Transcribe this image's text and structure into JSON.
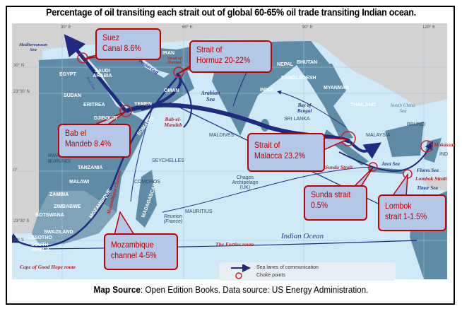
{
  "title": "Percentage of oil transiting each strait out of global 60-65% oil trade transiting Indian ocean.",
  "colors": {
    "sea": "#cfe9f6",
    "land_region": "#5e8ca6",
    "land_other": "#d2d2d2",
    "route": "#1f2a80",
    "choke": "#c8202a",
    "callout_bg": "#b4c7e7",
    "callout_border": "#c00000"
  },
  "callouts": {
    "suez": [
      "Suez",
      "Canal  8.6%"
    ],
    "hormuz": [
      "Strait of",
      "Hormuz 20-22%"
    ],
    "bab": [
      "Bab el",
      "Mandeb  8.4%"
    ],
    "malacca": [
      "Strait of",
      "Malacca 23.2%"
    ],
    "sunda": [
      "Sunda strait",
      "0.5%"
    ],
    "lombok": [
      "Lombok",
      "strait 1-1.5%"
    ],
    "mozambique": [
      "Mozambique",
      "channel 4-5%"
    ]
  },
  "grid_labels": {
    "lon30": "30° E",
    "lon60": "60° E",
    "lon90": "90° E",
    "lon120": "120° E",
    "lat30": "30° N",
    "lat23": "23°30' N",
    "lat0": "0°",
    "lat23s": "23°30' S",
    "lat30s": "30° S"
  },
  "countries": [
    "EGYPT",
    "SAUDI ARABIA",
    "IRAN",
    "NEPAL",
    "BHUTAN",
    "BANGLADESH",
    "INDIA",
    "MYANMAR",
    "THAILAND",
    "SUDAN",
    "ERITREA",
    "YEMEN",
    "OMAN",
    "DJIBOUTI",
    "SOMALIA",
    "SRI LANKA",
    "MALDIVES",
    "MALAYSIA",
    "BRUNEI",
    "RWANDA",
    "BURUNDI",
    "TANZANIA",
    "SEYCHELLES",
    "MALAWI",
    "COMOROS",
    "ZAMBIA",
    "ZIMBABWE",
    "MOZAMBIQUE",
    "MADAGASCAR",
    "BOTSWANA",
    "MAURITIUS",
    "SWAZILAND",
    "LESOTHO",
    "SOUTH AFRICA",
    "Chagos Archipelago (UK)",
    "Reunion (France)",
    "IND"
  ],
  "seas": {
    "med": "Mediterranean Sea",
    "arabian": "Arabian Sea",
    "bengal": "Bay of Bengal",
    "scs": "South China Sea",
    "java": "Java Sea",
    "flores": "Flores Sea",
    "timor": "Timor Sea",
    "indian": "Indian Ocean",
    "red": "Red Sea",
    "gulf": "Persian Gulf"
  },
  "red_labels": {
    "hormuz": "Strait of Hormuz",
    "bab": "Bab-el-Mandeb",
    "sunda": "Sunda Strait",
    "lombok": "Lombok Strait",
    "makassar": "Makassar",
    "moz": "Mozambique Channel",
    "forties": "The Forties route",
    "cape": "Cape of Good Hope route"
  },
  "legend": {
    "lanes": "Sea lanes of communication",
    "choke": "Choke points"
  },
  "caption": {
    "bold": "Map Source",
    "rest": ": Open Edition Books.  Data source: US Energy Administration."
  }
}
